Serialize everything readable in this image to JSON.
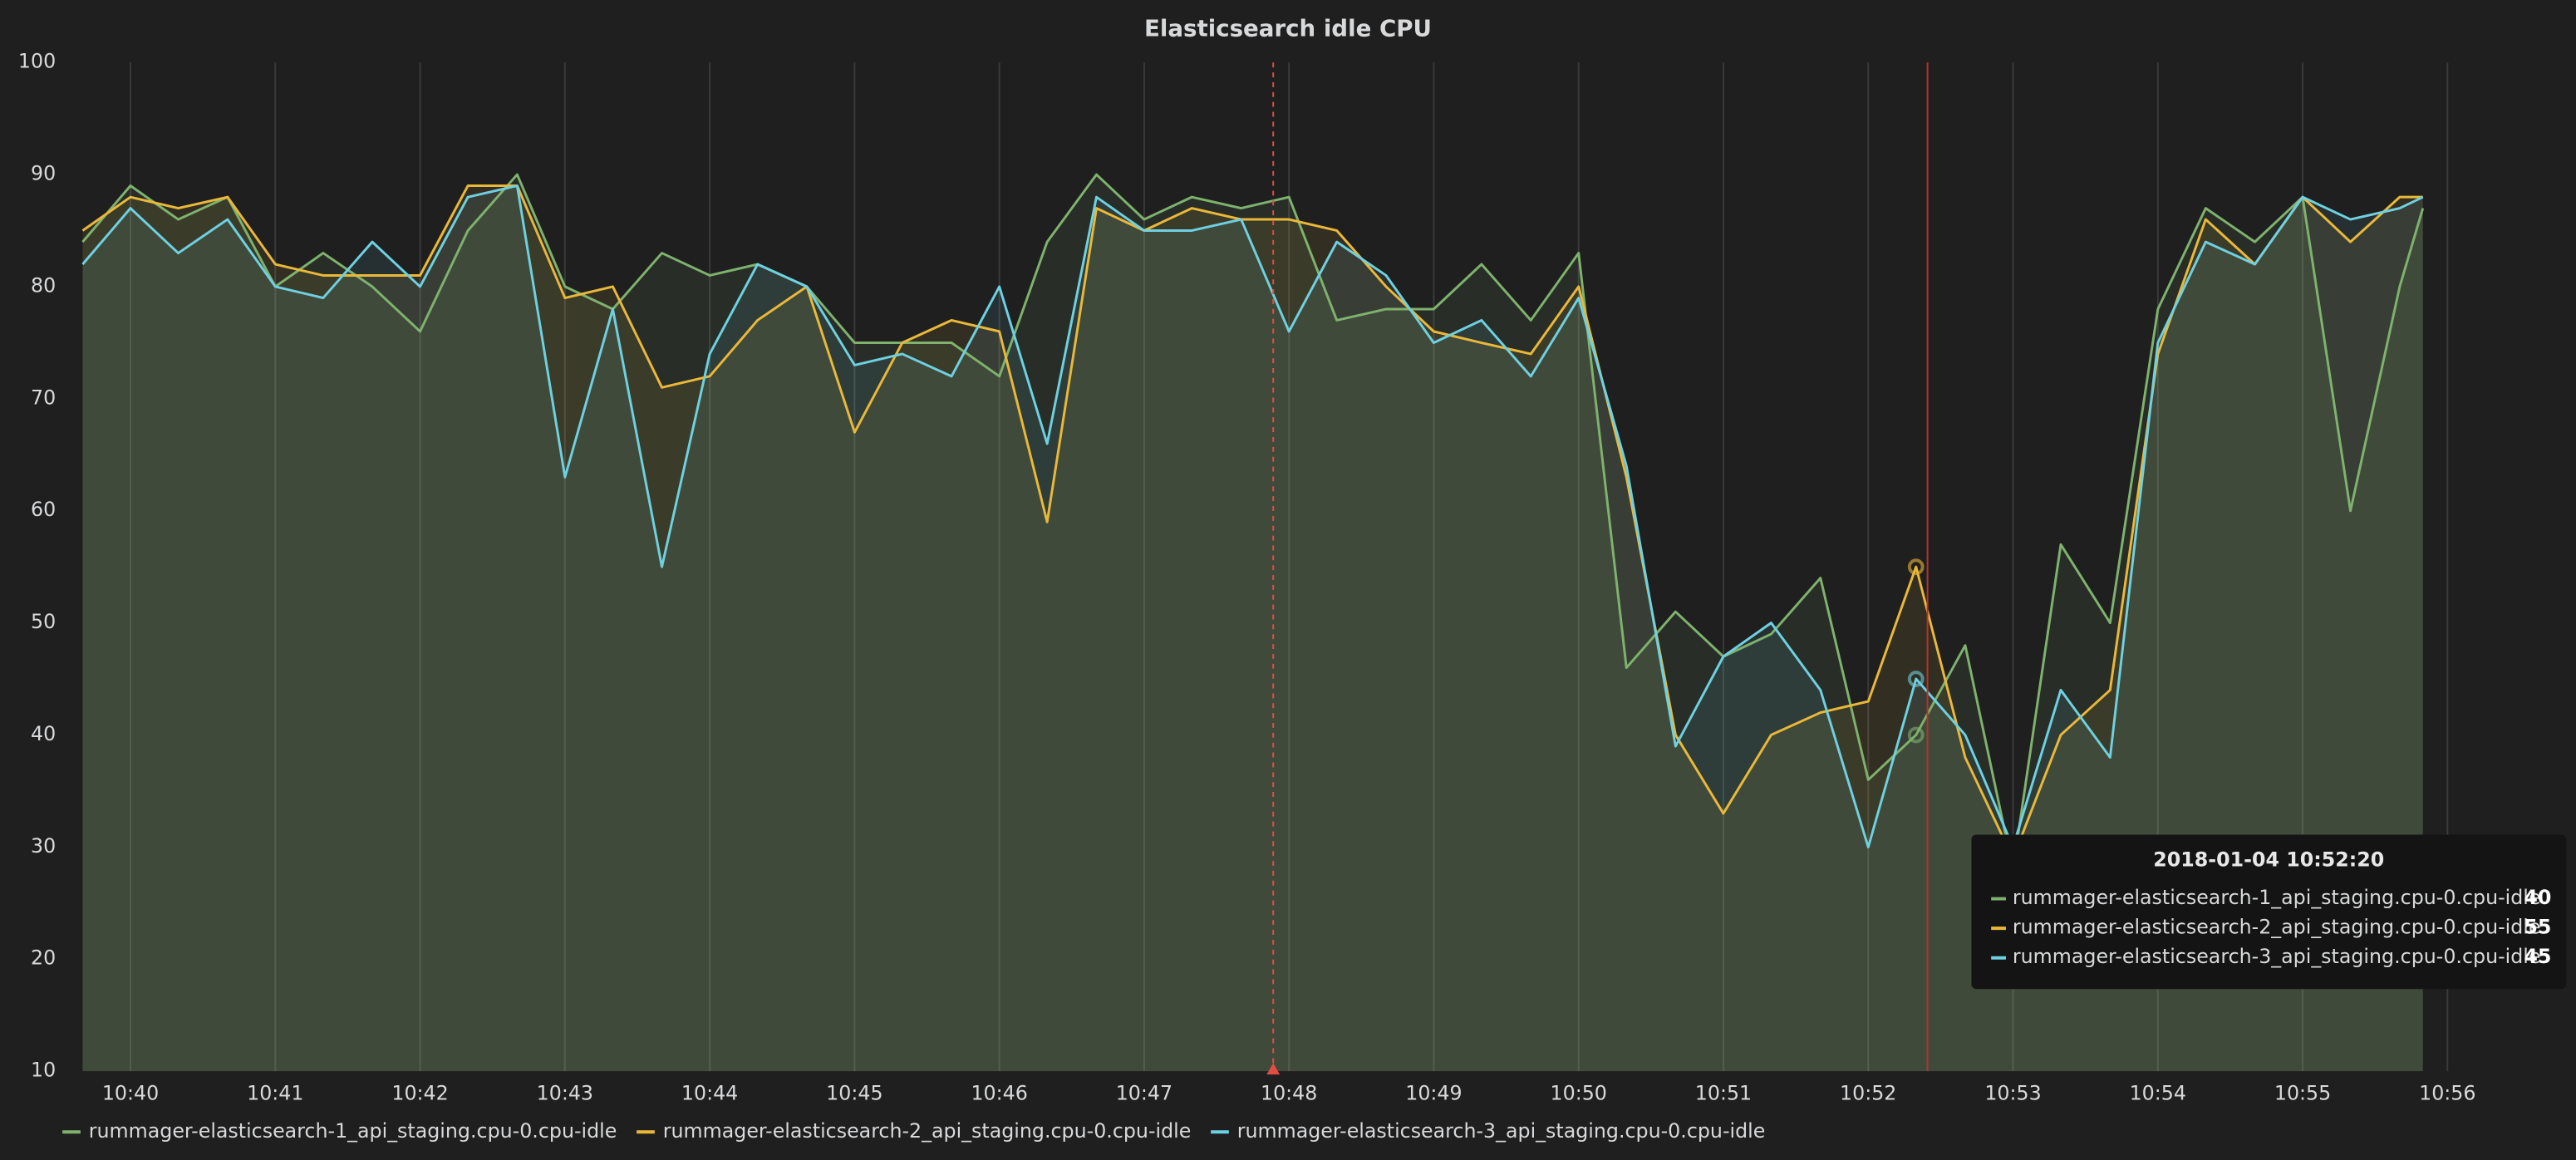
{
  "chart_data": {
    "type": "line",
    "title": "Elasticsearch idle CPU",
    "x": [
      39.67,
      40,
      40.33,
      40.67,
      41,
      41.33,
      41.67,
      42,
      42.33,
      42.67,
      43,
      43.33,
      43.67,
      44,
      44.33,
      44.67,
      45,
      45.33,
      45.67,
      46,
      46.33,
      46.67,
      47,
      47.33,
      47.67,
      48,
      48.33,
      48.67,
      49,
      49.33,
      49.67,
      50,
      50.33,
      50.67,
      51,
      51.33,
      51.67,
      52,
      52.33,
      52.67,
      53,
      53.33,
      53.67,
      54,
      54.33,
      54.67,
      55,
      55.33,
      55.67,
      55.83
    ],
    "series": [
      {
        "name": "rummager-elasticsearch-1_api_staging.cpu-0.cpu-idle",
        "color": "#7eb26d",
        "values": [
          84,
          89,
          86,
          88,
          80,
          83,
          80,
          76,
          85,
          90,
          80,
          78,
          83,
          81,
          82,
          80,
          75,
          75,
          75,
          72,
          84,
          90,
          86,
          88,
          87,
          88,
          77,
          78,
          78,
          82,
          77,
          83,
          46,
          51,
          47,
          49,
          54,
          36,
          40,
          48,
          28,
          57,
          50,
          78,
          87,
          84,
          88,
          60,
          80,
          87
        ]
      },
      {
        "name": "rummager-elasticsearch-2_api_staging.cpu-0.cpu-idle",
        "color": "#eab839",
        "values": [
          85,
          88,
          87,
          88,
          82,
          81,
          81,
          81,
          89,
          89,
          79,
          80,
          71,
          72,
          77,
          80,
          67,
          75,
          77,
          76,
          59,
          87,
          85,
          87,
          86,
          86,
          85,
          80,
          76,
          75,
          74,
          80,
          63,
          40,
          33,
          40,
          42,
          43,
          55,
          38,
          29,
          40,
          44,
          74,
          86,
          82,
          88,
          84,
          88,
          88
        ]
      },
      {
        "name": "rummager-elasticsearch-3_api_staging.cpu-0.cpu-idle",
        "color": "#6ed0e0",
        "values": [
          82,
          87,
          83,
          86,
          80,
          79,
          84,
          80,
          88,
          89,
          63,
          78,
          55,
          74,
          82,
          80,
          73,
          74,
          72,
          80,
          66,
          88,
          85,
          85,
          86,
          76,
          84,
          81,
          75,
          77,
          72,
          79,
          64,
          39,
          47,
          50,
          44,
          30,
          45,
          40,
          30,
          44,
          38,
          75,
          84,
          82,
          88,
          86,
          87,
          88
        ]
      }
    ],
    "xlim": [
      39.53,
      56.57
    ],
    "xticks": [
      {
        "value": 40,
        "label": "10:40"
      },
      {
        "value": 41,
        "label": "10:41"
      },
      {
        "value": 42,
        "label": "10:42"
      },
      {
        "value": 43,
        "label": "10:43"
      },
      {
        "value": 44,
        "label": "10:44"
      },
      {
        "value": 45,
        "label": "10:45"
      },
      {
        "value": 46,
        "label": "10:46"
      },
      {
        "value": 47,
        "label": "10:47"
      },
      {
        "value": 48,
        "label": "10:48"
      },
      {
        "value": 49,
        "label": "10:49"
      },
      {
        "value": 50,
        "label": "10:50"
      },
      {
        "value": 51,
        "label": "10:51"
      },
      {
        "value": 52,
        "label": "10:52"
      },
      {
        "value": 53,
        "label": "10:53"
      },
      {
        "value": 54,
        "label": "10:54"
      },
      {
        "value": 55,
        "label": "10:55"
      },
      {
        "value": 56,
        "label": "10:56"
      }
    ],
    "ylim": [
      10,
      100
    ],
    "yticks": [
      10,
      20,
      30,
      40,
      50,
      60,
      70,
      80,
      90,
      100
    ],
    "grid": true,
    "legend": "bottom",
    "tooltip": {
      "title": "2018-01-04 10:52:20"
    }
  }
}
